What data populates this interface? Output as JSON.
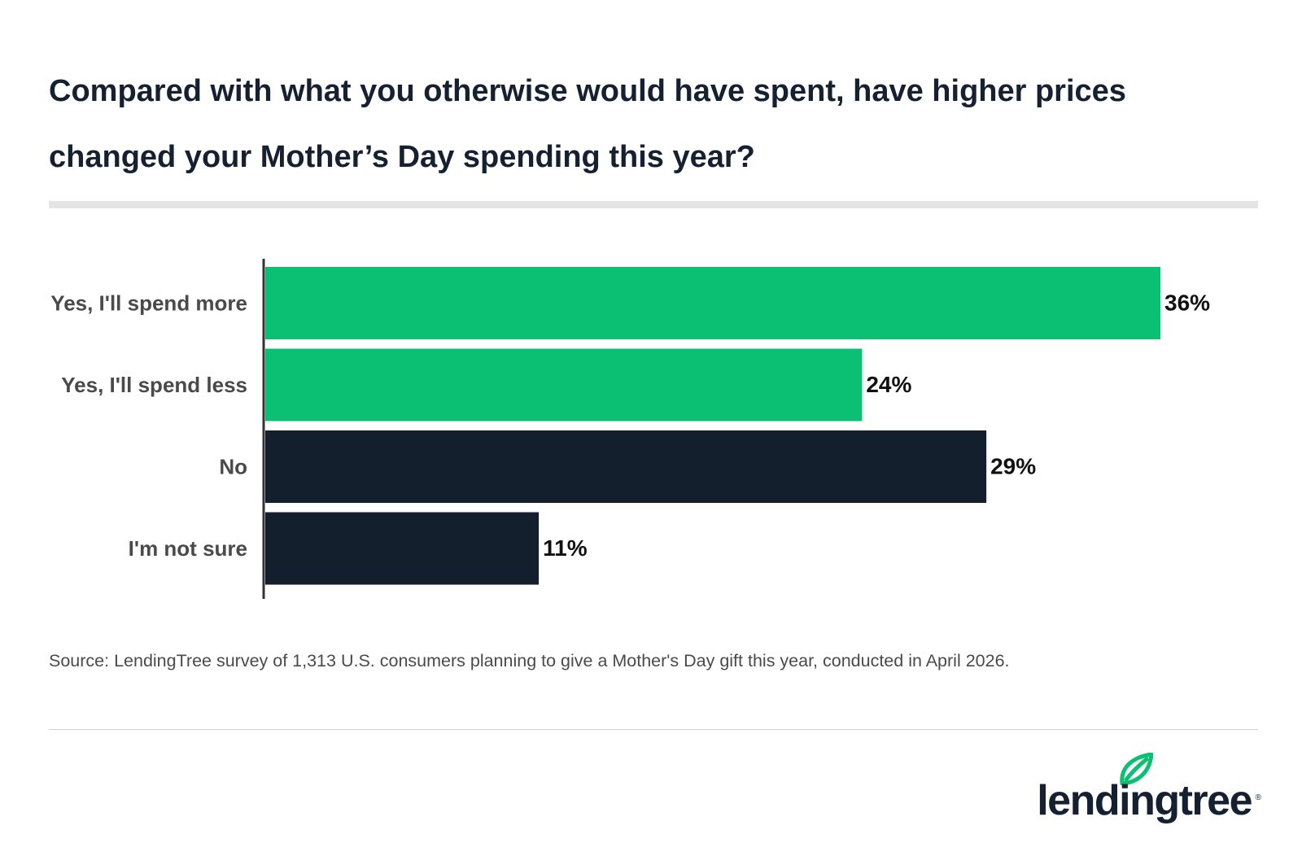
{
  "title": "Compared with what you otherwise would have spent, have higher prices changed your Mother’s Day spending this year?",
  "chart_data": {
    "type": "bar",
    "orientation": "horizontal",
    "categories": [
      "Yes, I'll spend more",
      "Yes, I'll spend less",
      "No",
      "I'm not sure"
    ],
    "values": [
      36,
      24,
      29,
      11
    ],
    "value_labels": [
      "36%",
      "24%",
      "29%",
      "11%"
    ],
    "bar_colors": [
      "#0bc073",
      "#0bc073",
      "#141f2e",
      "#141f2e"
    ],
    "xlim": [
      0,
      36
    ],
    "grid": false,
    "legend": "none"
  },
  "source": "Source: LendingTree survey of 1,313 U.S. consumers planning to give a Mother's Day gift this year, conducted in April 2026.",
  "logo": {
    "text": "lendingtree",
    "reg_mark": "®",
    "icon": "leaf-icon",
    "text_color": "#152030",
    "leaf_color": "#0bc073"
  },
  "colors": {
    "title": "#152030",
    "axis_label": "#4a4a4a",
    "value_label": "#111111"
  }
}
